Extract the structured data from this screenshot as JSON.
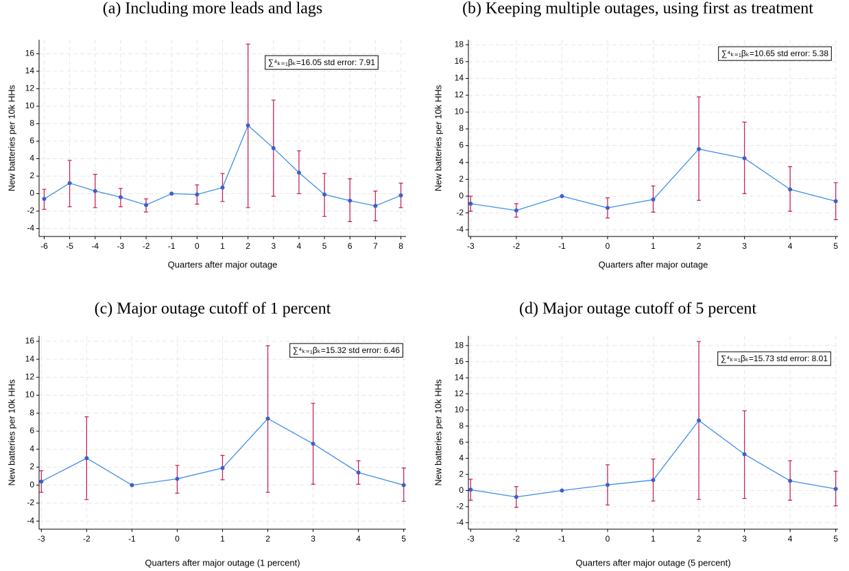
{
  "chart_data": [
    {
      "type": "line",
      "title": "(a) Including more leads and lags",
      "xlabel": "Quarters after major outage",
      "ylabel": "New batteries per 10k HHs",
      "annotation": "∑⁴ₖ₌₁βₖ=16.05 std error: 7.91",
      "x": [
        -6,
        -5,
        -4,
        -3,
        -2,
        -1,
        0,
        1,
        2,
        3,
        4,
        5,
        6,
        7,
        8
      ],
      "values": [
        -0.6,
        1.2,
        0.3,
        -0.4,
        -1.3,
        0,
        -0.1,
        0.7,
        7.8,
        5.2,
        2.4,
        -0.1,
        -0.8,
        -1.4,
        -0.2
      ],
      "ci_low": [
        -1.8,
        -1.5,
        -1.6,
        -1.5,
        -2.1,
        null,
        -1.2,
        -0.9,
        -1.6,
        -0.3,
        0,
        -2.6,
        -3.2,
        -3.1,
        -1.6
      ],
      "ci_high": [
        0.5,
        3.8,
        2.2,
        0.6,
        -0.6,
        null,
        1.0,
        2.3,
        17.1,
        10.7,
        4.9,
        2.3,
        1.7,
        0.3,
        1.2
      ],
      "color": "#3d8ee8",
      "marker_color": "#3b5fcc",
      "errorbar_color": "#c8245c",
      "xlim": [
        -6.2,
        8.2
      ],
      "xticks": [
        -6,
        -5,
        -4,
        -3,
        -2,
        -1,
        0,
        1,
        2,
        3,
        4,
        5,
        6,
        7,
        8
      ],
      "ylim": [
        -4.9,
        17.6
      ],
      "yticks": [
        -4,
        -2,
        0,
        2,
        4,
        6,
        8,
        10,
        12,
        14,
        16
      ],
      "grid": true
    },
    {
      "type": "line",
      "title": "(b) Keeping multiple outages, using first as treatment",
      "xlabel": "Quarters after major outage",
      "ylabel": "New batteries per 10k HHs",
      "annotation": "∑⁴ₖ₌₁βₖ=10.65 std error: 5.38",
      "x": [
        -3,
        -2,
        -1,
        0,
        1,
        2,
        3,
        4,
        5
      ],
      "values": [
        -0.9,
        -1.7,
        0,
        -1.4,
        -0.4,
        5.6,
        4.5,
        0.8,
        -0.6
      ],
      "ci_low": [
        -1.8,
        -2.5,
        null,
        -2.6,
        -1.9,
        -0.5,
        0.3,
        -1.8,
        -2.8
      ],
      "ci_high": [
        0,
        -0.9,
        null,
        -0.2,
        1.2,
        11.8,
        8.8,
        3.5,
        1.6
      ],
      "color": "#3d8ee8",
      "marker_color": "#3b5fcc",
      "errorbar_color": "#c8245c",
      "xlim": [
        -3.05,
        5.05
      ],
      "xticks": [
        -3,
        -2,
        -1,
        0,
        1,
        2,
        3,
        4,
        5
      ],
      "ylim": [
        -4.8,
        18.6
      ],
      "yticks": [
        -4,
        -2,
        0,
        2,
        4,
        6,
        8,
        10,
        12,
        14,
        16,
        18
      ],
      "grid": true
    },
    {
      "type": "line",
      "title": "(c) Major outage cutoff of 1 percent",
      "xlabel": "Quarters after major outage (1 percent)",
      "ylabel": "New batteries per 10k HHs",
      "annotation": "∑⁴ₖ₌₁βₖ=15.32 std error: 6.46",
      "x": [
        -3,
        -2,
        -1,
        0,
        1,
        2,
        3,
        4,
        5
      ],
      "values": [
        0.4,
        3.0,
        0,
        0.7,
        1.9,
        7.4,
        4.6,
        1.4,
        0
      ],
      "ci_low": [
        -0.8,
        -1.6,
        null,
        -0.9,
        0.6,
        -0.8,
        0.1,
        0.1,
        -1.8
      ],
      "ci_high": [
        1.6,
        7.6,
        null,
        2.2,
        3.3,
        15.5,
        9.1,
        2.7,
        1.9
      ],
      "color": "#3d8ee8",
      "marker_color": "#3b5fcc",
      "errorbar_color": "#c8245c",
      "xlim": [
        -3.05,
        5.05
      ],
      "xticks": [
        -3,
        -2,
        -1,
        0,
        1,
        2,
        3,
        4,
        5
      ],
      "ylim": [
        -4.9,
        16.6
      ],
      "yticks": [
        -4,
        -2,
        0,
        2,
        4,
        6,
        8,
        10,
        12,
        14,
        16
      ],
      "grid": true
    },
    {
      "type": "line",
      "title": "(d) Major outage cutoff of 5 percent",
      "xlabel": "Quarters after major outage (5 percent)",
      "ylabel": "New batteries per 10k HHs",
      "annotation": "∑⁴ₖ₌₁βₖ=15.73 std error: 8.01",
      "x": [
        -3,
        -2,
        -1,
        0,
        1,
        2,
        3,
        4,
        5
      ],
      "values": [
        0.1,
        -0.8,
        0,
        0.7,
        1.3,
        8.7,
        4.5,
        1.2,
        0.2
      ],
      "ci_low": [
        -1.2,
        -2.1,
        null,
        -1.8,
        -1.3,
        -1.1,
        -1.0,
        -1.2,
        -1.9
      ],
      "ci_high": [
        1.4,
        0.5,
        null,
        3.2,
        3.9,
        18.5,
        9.9,
        3.7,
        2.4
      ],
      "color": "#3d8ee8",
      "marker_color": "#3b5fcc",
      "errorbar_color": "#c8245c",
      "xlim": [
        -3.05,
        5.05
      ],
      "xticks": [
        -3,
        -2,
        -1,
        0,
        1,
        2,
        3,
        4,
        5
      ],
      "ylim": [
        -4.8,
        19.2
      ],
      "yticks": [
        -4,
        -2,
        0,
        2,
        4,
        6,
        8,
        10,
        12,
        14,
        16,
        18
      ],
      "grid": true
    }
  ]
}
